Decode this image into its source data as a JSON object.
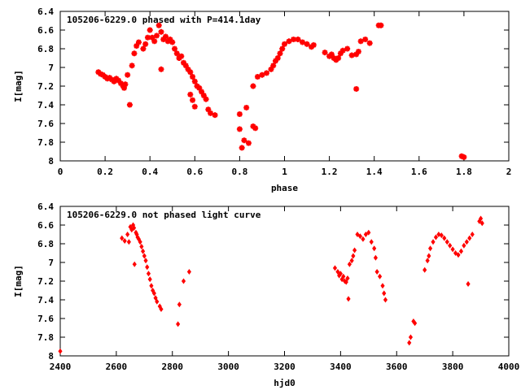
{
  "marker_color": "#ff0000",
  "chart_data": [
    {
      "type": "scatter",
      "title": "105206-6229.0 phased with P=414.1day",
      "xlabel": "phase",
      "ylabel": "I[mag]",
      "xlim": [
        0,
        2
      ],
      "ylim": [
        8,
        6.4
      ],
      "y_inverted": true,
      "xticks": [
        "0",
        "0.2",
        "0.4",
        "0.6",
        "0.8",
        "1",
        "1.2",
        "1.4",
        "1.6",
        "1.8",
        "2"
      ],
      "yticks": [
        "6.4",
        "6.6",
        "6.8",
        "7",
        "7.2",
        "7.4",
        "7.6",
        "7.8",
        "8"
      ],
      "marker": "plus",
      "points": [
        [
          0.17,
          7.05
        ],
        [
          0.18,
          7.07
        ],
        [
          0.19,
          7.08
        ],
        [
          0.2,
          7.1
        ],
        [
          0.21,
          7.12
        ],
        [
          0.22,
          7.11
        ],
        [
          0.23,
          7.13
        ],
        [
          0.24,
          7.15
        ],
        [
          0.25,
          7.12
        ],
        [
          0.26,
          7.14
        ],
        [
          0.27,
          7.17
        ],
        [
          0.28,
          7.2
        ],
        [
          0.285,
          7.22
        ],
        [
          0.29,
          7.18
        ],
        [
          0.3,
          7.08
        ],
        [
          0.31,
          7.4
        ],
        [
          0.32,
          6.98
        ],
        [
          0.33,
          6.85
        ],
        [
          0.34,
          6.77
        ],
        [
          0.35,
          6.73
        ],
        [
          0.37,
          6.8
        ],
        [
          0.38,
          6.75
        ],
        [
          0.39,
          6.68
        ],
        [
          0.4,
          6.6
        ],
        [
          0.41,
          6.68
        ],
        [
          0.42,
          6.72
        ],
        [
          0.43,
          6.66
        ],
        [
          0.44,
          6.55
        ],
        [
          0.45,
          6.62
        ],
        [
          0.46,
          6.7
        ],
        [
          0.47,
          6.67
        ],
        [
          0.48,
          6.72
        ],
        [
          0.49,
          6.7
        ],
        [
          0.5,
          6.73
        ],
        [
          0.45,
          7.02
        ],
        [
          0.51,
          6.8
        ],
        [
          0.52,
          6.85
        ],
        [
          0.53,
          6.9
        ],
        [
          0.54,
          6.88
        ],
        [
          0.55,
          6.95
        ],
        [
          0.56,
          6.98
        ],
        [
          0.57,
          7.02
        ],
        [
          0.58,
          7.05
        ],
        [
          0.59,
          7.1
        ],
        [
          0.6,
          7.15
        ],
        [
          0.61,
          7.2
        ],
        [
          0.62,
          7.22
        ],
        [
          0.63,
          7.26
        ],
        [
          0.64,
          7.3
        ],
        [
          0.65,
          7.34
        ],
        [
          0.58,
          7.29
        ],
        [
          0.59,
          7.35
        ],
        [
          0.6,
          7.42
        ],
        [
          0.66,
          7.45
        ],
        [
          0.67,
          7.49
        ],
        [
          0.69,
          7.51
        ],
        [
          0.8,
          7.5
        ],
        [
          0.8,
          7.66
        ],
        [
          0.81,
          7.86
        ],
        [
          0.82,
          7.78
        ],
        [
          0.83,
          7.43
        ],
        [
          0.84,
          7.81
        ],
        [
          0.86,
          7.63
        ],
        [
          0.87,
          7.65
        ],
        [
          0.86,
          7.2
        ],
        [
          0.88,
          7.1
        ],
        [
          0.9,
          7.08
        ],
        [
          0.92,
          7.06
        ],
        [
          0.94,
          7.02
        ],
        [
          0.95,
          6.98
        ],
        [
          0.96,
          6.93
        ],
        [
          0.97,
          6.9
        ],
        [
          0.98,
          6.85
        ],
        [
          0.99,
          6.8
        ],
        [
          1.0,
          6.75
        ],
        [
          1.02,
          6.72
        ],
        [
          1.04,
          6.7
        ],
        [
          1.06,
          6.7
        ],
        [
          1.08,
          6.73
        ],
        [
          1.1,
          6.75
        ],
        [
          1.12,
          6.78
        ],
        [
          1.13,
          6.76
        ],
        [
          1.18,
          6.84
        ],
        [
          1.2,
          6.88
        ],
        [
          1.21,
          6.86
        ],
        [
          1.22,
          6.9
        ],
        [
          1.23,
          6.92
        ],
        [
          1.24,
          6.9
        ],
        [
          1.25,
          6.85
        ],
        [
          1.26,
          6.82
        ],
        [
          1.28,
          6.8
        ],
        [
          1.3,
          6.87
        ],
        [
          1.32,
          6.86
        ],
        [
          1.32,
          7.23
        ],
        [
          1.33,
          6.83
        ],
        [
          1.34,
          6.72
        ],
        [
          1.36,
          6.7
        ],
        [
          1.38,
          6.74
        ],
        [
          1.42,
          6.55
        ],
        [
          1.43,
          6.55
        ],
        [
          1.79,
          7.95
        ],
        [
          1.8,
          7.96
        ]
      ]
    },
    {
      "type": "scatter",
      "title": "105206-6229.0 not phased light curve",
      "xlabel": "hjd0",
      "ylabel": "I[mag]",
      "xlim": [
        2400,
        4000
      ],
      "ylim": [
        8,
        6.4
      ],
      "y_inverted": true,
      "xticks": [
        "2400",
        "2600",
        "2800",
        "3000",
        "3200",
        "3400",
        "3600",
        "3800",
        "4000"
      ],
      "yticks": [
        "6.4",
        "6.6",
        "6.8",
        "7",
        "7.2",
        "7.4",
        "7.6",
        "7.8",
        "8"
      ],
      "marker": "diamond",
      "points": [
        [
          2400,
          7.95
        ],
        [
          2620,
          6.74
        ],
        [
          2630,
          6.77
        ],
        [
          2640,
          6.7
        ],
        [
          2645,
          6.78
        ],
        [
          2650,
          6.62
        ],
        [
          2655,
          6.65
        ],
        [
          2660,
          6.6
        ],
        [
          2663,
          6.63
        ],
        [
          2665,
          7.02
        ],
        [
          2670,
          6.68
        ],
        [
          2673,
          6.7
        ],
        [
          2676,
          6.73
        ],
        [
          2680,
          6.75
        ],
        [
          2685,
          6.78
        ],
        [
          2690,
          6.83
        ],
        [
          2695,
          6.88
        ],
        [
          2700,
          6.93
        ],
        [
          2705,
          6.98
        ],
        [
          2710,
          7.05
        ],
        [
          2715,
          7.12
        ],
        [
          2720,
          7.18
        ],
        [
          2725,
          7.25
        ],
        [
          2730,
          7.3
        ],
        [
          2735,
          7.33
        ],
        [
          2740,
          7.38
        ],
        [
          2745,
          7.42
        ],
        [
          2755,
          7.47
        ],
        [
          2760,
          7.5
        ],
        [
          2820,
          7.66
        ],
        [
          2825,
          7.45
        ],
        [
          2840,
          7.2
        ],
        [
          2860,
          7.1
        ],
        [
          3380,
          7.06
        ],
        [
          3390,
          7.1
        ],
        [
          3395,
          7.14
        ],
        [
          3400,
          7.12
        ],
        [
          3405,
          7.18
        ],
        [
          3410,
          7.15
        ],
        [
          3415,
          7.2
        ],
        [
          3420,
          7.21
        ],
        [
          3425,
          7.17
        ],
        [
          3428,
          7.39
        ],
        [
          3432,
          7.02
        ],
        [
          3440,
          6.98
        ],
        [
          3445,
          6.93
        ],
        [
          3450,
          6.87
        ],
        [
          3460,
          6.7
        ],
        [
          3470,
          6.72
        ],
        [
          3480,
          6.75
        ],
        [
          3490,
          6.7
        ],
        [
          3500,
          6.68
        ],
        [
          3510,
          6.78
        ],
        [
          3520,
          6.85
        ],
        [
          3525,
          6.95
        ],
        [
          3530,
          7.1
        ],
        [
          3540,
          7.15
        ],
        [
          3550,
          7.25
        ],
        [
          3555,
          7.33
        ],
        [
          3560,
          7.4
        ],
        [
          3645,
          7.86
        ],
        [
          3650,
          7.8
        ],
        [
          3660,
          7.63
        ],
        [
          3665,
          7.65
        ],
        [
          3700,
          7.08
        ],
        [
          3710,
          6.98
        ],
        [
          3715,
          6.93
        ],
        [
          3720,
          6.85
        ],
        [
          3730,
          6.78
        ],
        [
          3740,
          6.73
        ],
        [
          3750,
          6.7
        ],
        [
          3760,
          6.71
        ],
        [
          3770,
          6.74
        ],
        [
          3780,
          6.78
        ],
        [
          3790,
          6.82
        ],
        [
          3800,
          6.86
        ],
        [
          3810,
          6.9
        ],
        [
          3820,
          6.92
        ],
        [
          3830,
          6.88
        ],
        [
          3840,
          6.82
        ],
        [
          3850,
          6.78
        ],
        [
          3855,
          7.23
        ],
        [
          3860,
          6.74
        ],
        [
          3870,
          6.7
        ],
        [
          3895,
          6.56
        ],
        [
          3900,
          6.53
        ],
        [
          3905,
          6.58
        ]
      ]
    }
  ]
}
